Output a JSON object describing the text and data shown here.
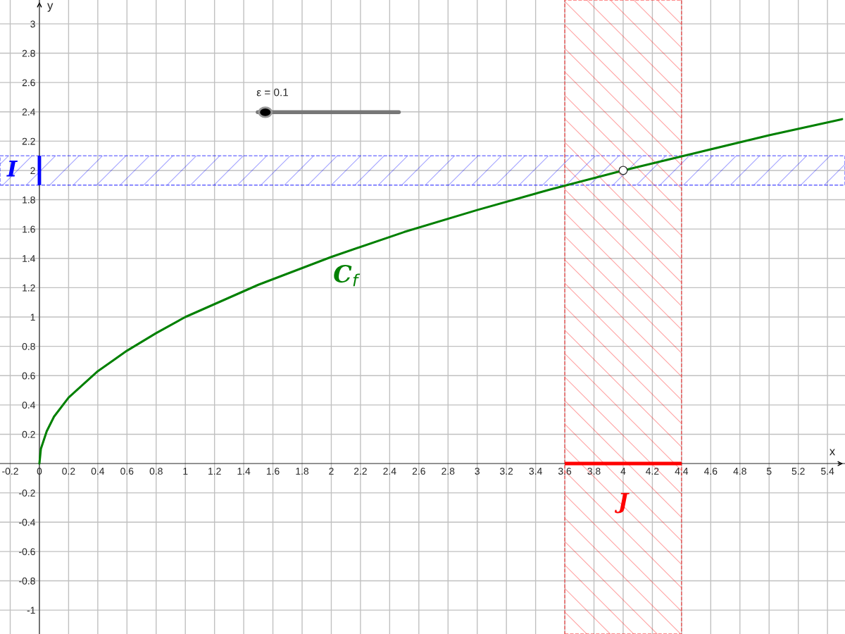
{
  "chart_data": {
    "type": "line",
    "xlabel": "x",
    "ylabel": "y",
    "xlim": [
      -0.27,
      5.52
    ],
    "ylim": [
      -1.163,
      3.163
    ],
    "xticks": [
      -0.2,
      0,
      0.2,
      0.4,
      0.6,
      0.8,
      1,
      1.2,
      1.4,
      1.6,
      1.8,
      2,
      2.2,
      2.4,
      2.6,
      2.8,
      3,
      3.2,
      3.4,
      3.6,
      3.8,
      4,
      4.2,
      4.4,
      4.6,
      4.8,
      5,
      5.2,
      5.4
    ],
    "yticks": [
      -1,
      -0.8,
      -0.6,
      -0.4,
      -0.2,
      0.2,
      0.4,
      0.6,
      0.8,
      1,
      1.2,
      1.4,
      1.6,
      1.8,
      2,
      2.2,
      2.4,
      2.6,
      2.8,
      3
    ],
    "grid": true,
    "series": [
      {
        "name": "C$_{f}$",
        "color": "#008000",
        "x": [
          0,
          0.01,
          0.05,
          0.1,
          0.2,
          0.4,
          0.6,
          0.8,
          1,
          1.5,
          2,
          2.5,
          3,
          3.5,
          4,
          4.5,
          5,
          5.5
        ],
        "values": [
          0,
          0.1,
          0.22,
          0.32,
          0.45,
          0.63,
          0.77,
          0.89,
          1,
          1.22,
          1.41,
          1.58,
          1.73,
          1.87,
          2,
          2.12,
          2.24,
          2.35
        ]
      },
      {
        "type": "scatter",
        "color": "#333333",
        "marker": "circle",
        "x": [
          4
        ],
        "values": [
          2
        ]
      }
    ],
    "bands": [
      {
        "axis": "y",
        "from": 1.9,
        "to": 2.1,
        "label": "I",
        "color": "#0000ff"
      },
      {
        "axis": "x",
        "from": 3.6,
        "to": 4.4,
        "label": "J",
        "color": "#ff0000"
      }
    ],
    "annotations": [
      "ε = 0.1"
    ]
  }
}
